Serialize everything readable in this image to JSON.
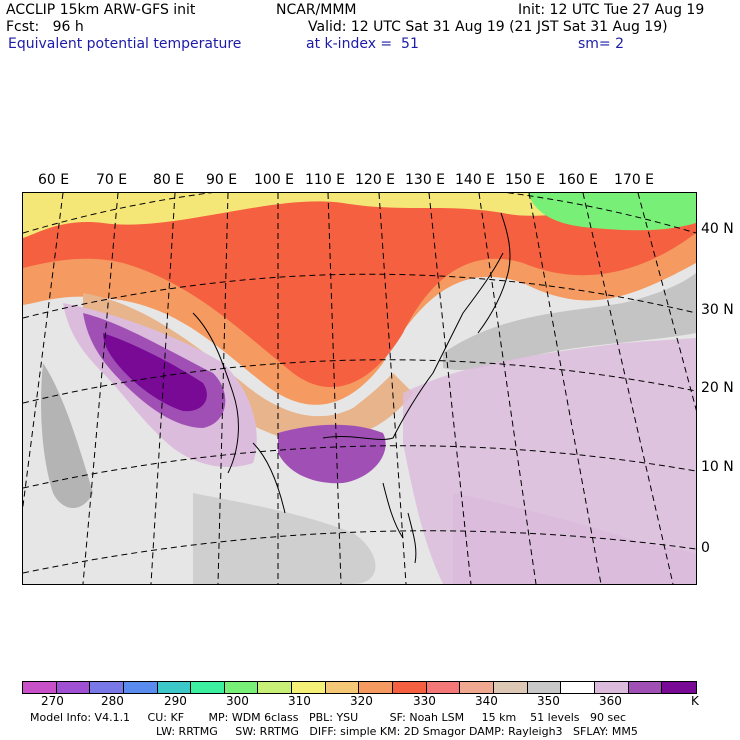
{
  "header": {
    "line1_left": "ACCLIP 15km ARW-GFS init",
    "line1_mid": "NCAR/MMM",
    "line1_right": "Init: 12 UTC Tue 27 Aug 19",
    "line2_left": "Fcst:   96 h",
    "line2_right": "Valid: 12 UTC Sat 31 Aug 19 (21 JST Sat 31 Aug 19)",
    "line3_left": "Equivalent potential temperature",
    "line3_mid": "at k-index =  51",
    "line3_right": "sm= 2"
  },
  "map": {
    "lon_labels": [
      "60 E",
      "70 E",
      "80 E",
      "90 E",
      "100 E",
      "110 E",
      "120 E",
      "130 E",
      "140 E",
      "150 E",
      "160 E",
      "170 E"
    ],
    "lat_labels": [
      "40 N",
      "30 N",
      "20 N",
      "10 N",
      "0"
    ],
    "field_colors": {
      "warm_yellow": "#f5e678",
      "green": "#78f078",
      "orange_red": "#f56040",
      "orange": "#f59a60",
      "tan": "#e8b48c",
      "gray": "#b4b4b4",
      "light_gray": "#e4e4e4",
      "lavender": "#dcbcdc",
      "purple_mid": "#a050b4",
      "purple_dark": "#780a96"
    }
  },
  "colorbar": {
    "unit": "K",
    "ticks": [
      "270",
      "280",
      "290",
      "300",
      "310",
      "320",
      "330",
      "340",
      "350",
      "360"
    ],
    "colors": [
      "#c850c8",
      "#a050d2",
      "#7878e6",
      "#5a8cf0",
      "#3cc8c8",
      "#3cf0a0",
      "#78f078",
      "#c8f078",
      "#f5f078",
      "#f5c878",
      "#f59a60",
      "#f56040",
      "#f57878",
      "#f0a890",
      "#dcc8b4",
      "#c8c8c8",
      "#ffffff",
      "#dcbcdc",
      "#a050b4",
      "#780a96"
    ]
  },
  "footer": {
    "line1": "Model Info: V4.1.1     CU: KF       MP: WDM 6class   PBL: YSU         SF: Noah LSM     15 km    51 levels   90 sec",
    "line2": "LW: RRTMG     SW: RRTMG   DIFF: simple KM: 2D Smagor DAMP: Rayleigh3   SFLAY: MM5"
  }
}
